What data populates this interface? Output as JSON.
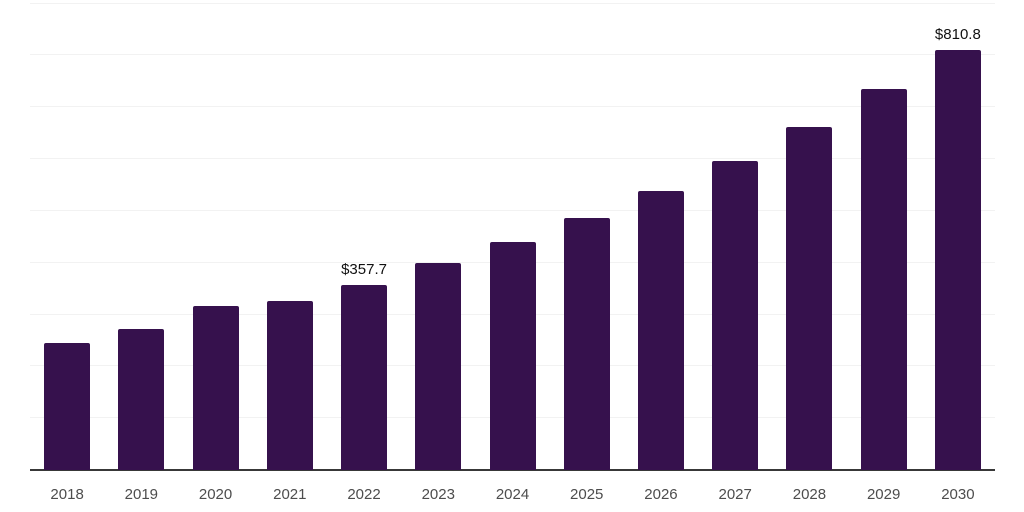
{
  "chart_data": {
    "type": "bar",
    "title": "",
    "xlabel": "",
    "ylabel": "",
    "categories": [
      "2018",
      "2019",
      "2020",
      "2021",
      "2022",
      "2023",
      "2024",
      "2025",
      "2026",
      "2027",
      "2028",
      "2029",
      "2030"
    ],
    "values": [
      246,
      273,
      316,
      326,
      357.7,
      400,
      440,
      486,
      539,
      597,
      661,
      735,
      810.8
    ],
    "data_labels": [
      "",
      "",
      "",
      "",
      "$357.7",
      "",
      "",
      "",
      "",
      "",
      "",
      "",
      "$810.8"
    ],
    "ylim": [
      0,
      907
    ],
    "gridline_values": [
      100,
      200,
      300,
      400,
      500,
      600,
      700,
      800,
      900
    ],
    "grid": "horizontal-only",
    "legend": "none",
    "colors": {
      "bar": "#36114d",
      "gridline": "#f2f2f2",
      "axis_line": "#383838",
      "tick_label": "#4d4d4d",
      "data_label": "#111111",
      "background": "#ffffff"
    }
  }
}
